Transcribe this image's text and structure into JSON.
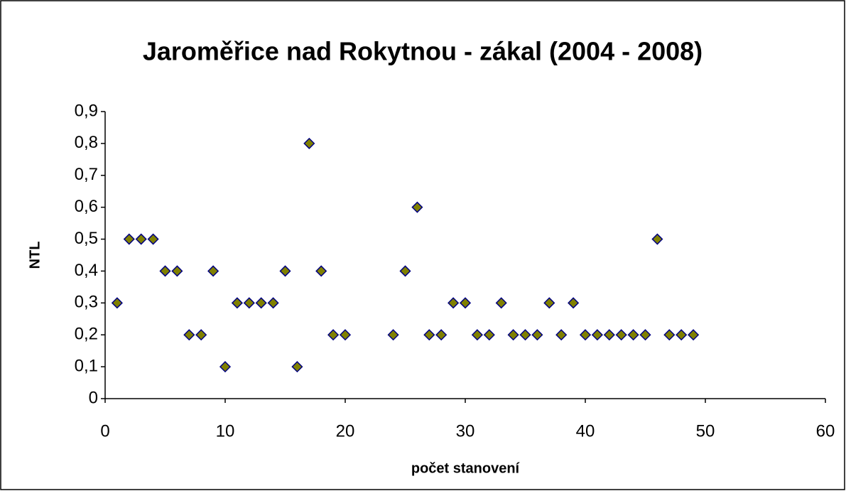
{
  "chart_data": {
    "type": "scatter",
    "title": "Jaroměřice nad Rokytnou - zákal (2004 - 2008)",
    "xlabel": "počet stanovení",
    "ylabel": "NTL",
    "x": [
      1,
      2,
      3,
      4,
      5,
      6,
      7,
      8,
      9,
      10,
      11,
      12,
      13,
      14,
      15,
      16,
      17,
      18,
      19,
      20,
      24,
      25,
      26,
      27,
      28,
      29,
      30,
      31,
      32,
      33,
      34,
      35,
      36,
      37,
      38,
      39,
      40,
      41,
      42,
      43,
      44,
      45,
      46,
      47,
      48,
      49
    ],
    "values": [
      0.3,
      0.5,
      0.5,
      0.5,
      0.4,
      0.4,
      0.2,
      0.2,
      0.4,
      0.1,
      0.3,
      0.3,
      0.3,
      0.3,
      0.4,
      0.1,
      0.8,
      0.4,
      0.2,
      0.2,
      0.2,
      0.4,
      0.6,
      0.2,
      0.2,
      0.3,
      0.3,
      0.2,
      0.2,
      0.3,
      0.2,
      0.2,
      0.2,
      0.3,
      0.2,
      0.3,
      0.2,
      0.2,
      0.2,
      0.2,
      0.2,
      0.2,
      0.5,
      0.2,
      0.2,
      0.2
    ],
    "color": "#808000",
    "edgecolor": "#000080",
    "xlim": [
      0,
      60
    ],
    "xticks": [
      0,
      10,
      20,
      30,
      40,
      50,
      60
    ],
    "ylim": [
      0,
      0.9
    ],
    "yticks": [
      0,
      {
        "value": 0.1,
        "label": "0,1"
      },
      {
        "value": 0.2,
        "label": "0,2"
      },
      {
        "value": 0.3,
        "label": "0,3"
      },
      {
        "value": 0.4,
        "label": "0,4"
      },
      {
        "value": 0.5,
        "label": "0,5"
      },
      {
        "value": 0.6,
        "label": "0,6"
      },
      {
        "value": 0.7,
        "label": "0,7"
      },
      {
        "value": 0.8,
        "label": "0,8"
      },
      {
        "value": 0.9,
        "label": "0,9"
      }
    ],
    "grid": false
  }
}
